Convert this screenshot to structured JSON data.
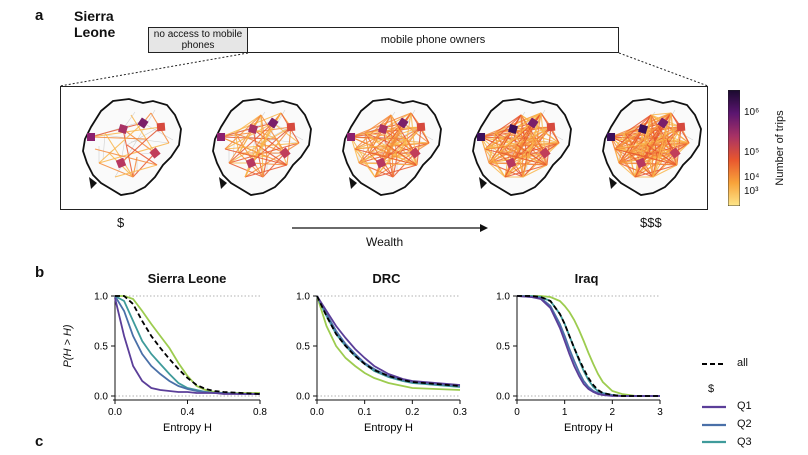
{
  "panel_a": {
    "letter": "a",
    "country": "Sierra Leone",
    "bar_no_access": "no access to mobile phones",
    "bar_owners": "mobile phone owners",
    "wealth_low": "$",
    "wealth_high": "$$$",
    "wealth_label": "Wealth",
    "colorbar": {
      "label": "Number of trips",
      "ticks": [
        "10⁶",
        "10⁵",
        "10⁴",
        "10³"
      ],
      "colors": [
        "#1a0a2e",
        "#5b1570",
        "#a83265",
        "#e8562e",
        "#f8a33a",
        "#fde68a"
      ]
    },
    "map_count": 5
  },
  "panel_b": {
    "letter": "b",
    "ylabel": "P(H > H)",
    "xlabel": "Entropy H",
    "legend": {
      "all_label": "all",
      "group_title": "$",
      "entries": [
        "Q1",
        "Q2",
        "Q3"
      ]
    },
    "series_colors": {
      "Q1": "#5b3e99",
      "Q2": "#4a70a8",
      "Q3": "#3f9b9b",
      "Q4": "#9dcc4f",
      "all": "#000000"
    }
  },
  "panel_c": {
    "letter": "c"
  },
  "chart_data": [
    {
      "type": "line",
      "title": "Sierra Leone",
      "xlabel": "Entropy H",
      "ylabel": "P(H > H)",
      "xlim": [
        0,
        0.8
      ],
      "ylim": [
        0,
        1
      ],
      "xticks": [
        "0.0",
        "0.4",
        "0.8"
      ],
      "xtick_values": [
        0,
        0.4,
        0.8
      ],
      "yticks": [
        "0.0",
        "0.5",
        "1.0"
      ],
      "ytick_values": [
        0,
        0.5,
        1
      ],
      "x": [
        0,
        0.05,
        0.1,
        0.15,
        0.2,
        0.25,
        0.3,
        0.35,
        0.4,
        0.45,
        0.5,
        0.55,
        0.6,
        0.7,
        0.8
      ],
      "series": [
        {
          "name": "Q1",
          "values": [
            0.98,
            0.6,
            0.3,
            0.15,
            0.08,
            0.06,
            0.05,
            0.04,
            0.04,
            0.03,
            0.03,
            0.03,
            0.02,
            0.02,
            0.02
          ]
        },
        {
          "name": "Q2",
          "values": [
            1.0,
            0.85,
            0.6,
            0.42,
            0.3,
            0.22,
            0.15,
            0.1,
            0.07,
            0.05,
            0.04,
            0.03,
            0.03,
            0.02,
            0.02
          ]
        },
        {
          "name": "Q3",
          "values": [
            1.0,
            0.95,
            0.75,
            0.55,
            0.42,
            0.32,
            0.22,
            0.13,
            0.08,
            0.06,
            0.04,
            0.03,
            0.03,
            0.02,
            0.02
          ]
        },
        {
          "name": "Q4",
          "values": [
            1.0,
            1.0,
            0.97,
            0.85,
            0.72,
            0.6,
            0.48,
            0.33,
            0.2,
            0.1,
            0.06,
            0.04,
            0.03,
            0.03,
            0.03
          ]
        },
        {
          "name": "all",
          "values": [
            1.0,
            1.0,
            0.92,
            0.75,
            0.6,
            0.48,
            0.37,
            0.27,
            0.18,
            0.11,
            0.07,
            0.05,
            0.04,
            0.03,
            0.02
          ]
        }
      ]
    },
    {
      "type": "line",
      "title": "DRC",
      "xlabel": "Entropy H",
      "ylabel": "",
      "xlim": [
        0,
        0.3
      ],
      "ylim": [
        0,
        1
      ],
      "xticks": [
        "0.0",
        "0.1",
        "0.2",
        "0.3"
      ],
      "xtick_values": [
        0,
        0.1,
        0.2,
        0.3
      ],
      "yticks": [
        "0.0",
        "0.5",
        "1.0"
      ],
      "ytick_values": [
        0,
        0.5,
        1
      ],
      "x": [
        0,
        0.02,
        0.04,
        0.06,
        0.08,
        0.1,
        0.12,
        0.15,
        0.18,
        0.2,
        0.25,
        0.3
      ],
      "series": [
        {
          "name": "Q1",
          "values": [
            1.0,
            0.85,
            0.7,
            0.58,
            0.47,
            0.38,
            0.3,
            0.22,
            0.17,
            0.15,
            0.13,
            0.11
          ]
        },
        {
          "name": "Q2",
          "values": [
            1.0,
            0.82,
            0.65,
            0.52,
            0.42,
            0.33,
            0.27,
            0.2,
            0.16,
            0.14,
            0.12,
            0.1
          ]
        },
        {
          "name": "Q3",
          "values": [
            1.0,
            0.8,
            0.62,
            0.5,
            0.4,
            0.32,
            0.25,
            0.19,
            0.15,
            0.13,
            0.11,
            0.09
          ]
        },
        {
          "name": "Q4",
          "values": [
            1.0,
            0.7,
            0.5,
            0.38,
            0.3,
            0.23,
            0.18,
            0.13,
            0.1,
            0.08,
            0.07,
            0.06
          ]
        },
        {
          "name": "all",
          "values": [
            1.0,
            0.8,
            0.62,
            0.5,
            0.4,
            0.32,
            0.26,
            0.2,
            0.16,
            0.14,
            0.12,
            0.1
          ]
        }
      ]
    },
    {
      "type": "line",
      "title": "Iraq",
      "xlabel": "Entropy H",
      "ylabel": "",
      "xlim": [
        0,
        3
      ],
      "ylim": [
        0,
        1
      ],
      "xticks": [
        "0",
        "1",
        "2",
        "3"
      ],
      "xtick_values": [
        0,
        1,
        2,
        3
      ],
      "yticks": [
        "0.0",
        "0.5",
        "1.0"
      ],
      "ytick_values": [
        0,
        0.5,
        1
      ],
      "x": [
        0,
        0.3,
        0.5,
        0.7,
        0.9,
        1.0,
        1.1,
        1.2,
        1.3,
        1.4,
        1.5,
        1.6,
        1.7,
        1.8,
        2.0,
        2.2,
        2.5,
        3.0
      ],
      "series": [
        {
          "name": "Q1",
          "values": [
            1.0,
            0.99,
            0.97,
            0.88,
            0.68,
            0.55,
            0.42,
            0.3,
            0.2,
            0.12,
            0.07,
            0.04,
            0.02,
            0.01,
            0.0,
            0.0,
            0.0,
            0.0
          ]
        },
        {
          "name": "Q2",
          "values": [
            1.0,
            0.99,
            0.98,
            0.9,
            0.72,
            0.6,
            0.47,
            0.35,
            0.24,
            0.15,
            0.09,
            0.05,
            0.03,
            0.02,
            0.01,
            0.0,
            0.0,
            0.0
          ]
        },
        {
          "name": "Q3",
          "values": [
            1.0,
            1.0,
            0.99,
            0.95,
            0.82,
            0.72,
            0.6,
            0.48,
            0.36,
            0.25,
            0.16,
            0.09,
            0.05,
            0.03,
            0.01,
            0.0,
            0.0,
            0.0
          ]
        },
        {
          "name": "Q4",
          "values": [
            1.0,
            1.0,
            1.0,
            0.99,
            0.95,
            0.9,
            0.84,
            0.76,
            0.66,
            0.55,
            0.43,
            0.32,
            0.22,
            0.14,
            0.05,
            0.02,
            0.0,
            0.0
          ]
        },
        {
          "name": "all",
          "values": [
            1.0,
            1.0,
            0.99,
            0.95,
            0.82,
            0.72,
            0.6,
            0.48,
            0.37,
            0.27,
            0.18,
            0.11,
            0.06,
            0.03,
            0.01,
            0.0,
            0.0,
            0.0
          ]
        }
      ]
    }
  ]
}
